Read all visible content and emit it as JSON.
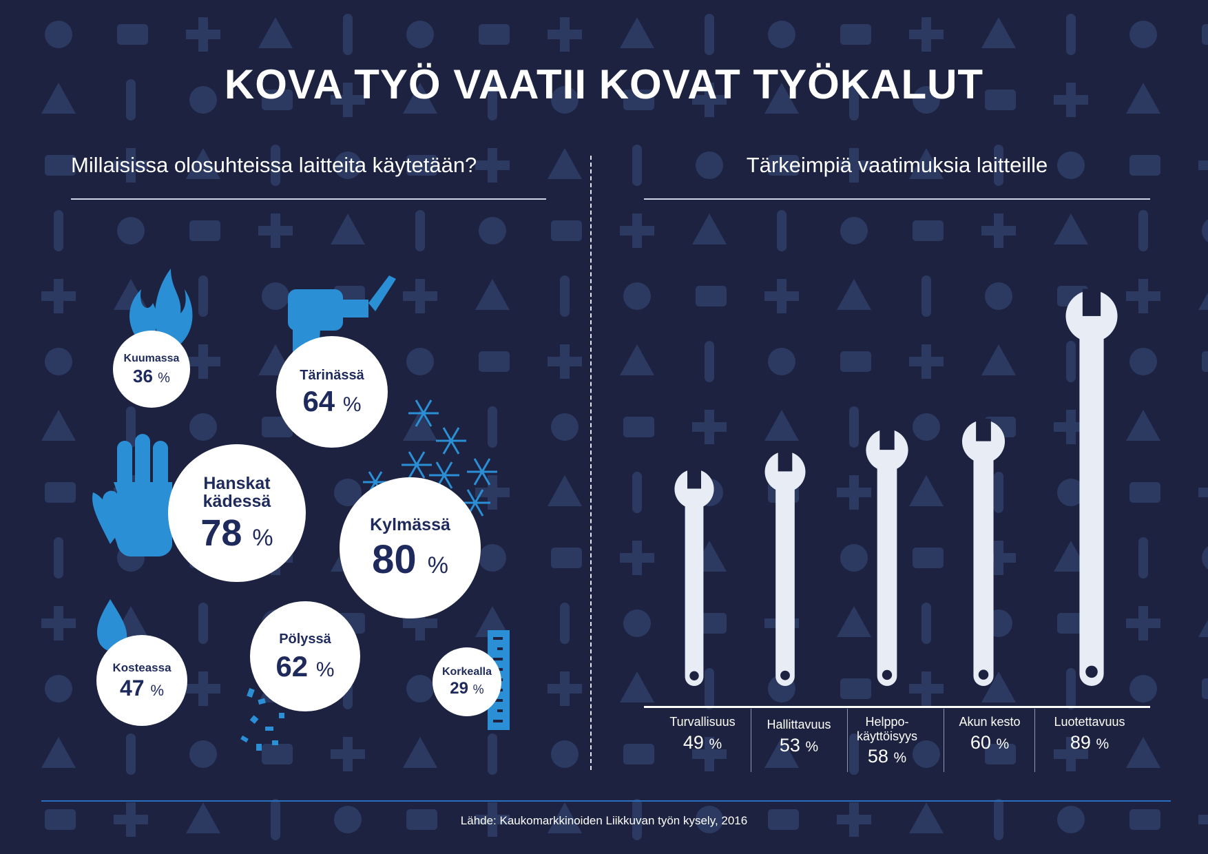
{
  "title": "KOVA TYÖ VAATII KOVAT TYÖKALUT",
  "left_section_title": "Millaisissa olosuhteissa laitteita käytetään?",
  "right_section_title": "Tärkeimpiä vaatimuksia laitteille",
  "percent_sign": "%",
  "colors": {
    "background": "#1c2240",
    "pattern": "#3a4e7c",
    "icon_blue": "#2b8fd6",
    "bubble": "#ffffff",
    "bubble_text": "#1f2a5c",
    "wrench": "#e8edf5",
    "accent_rule": "#2a6fbf"
  },
  "icons": {
    "kuumassa": "flame-icon",
    "tarinassa": "drill-icon",
    "hanskat": "glove-icon",
    "kylmassa": "snowflake-icon",
    "kosteassa": "water-drop-icon",
    "polyssa": "dust-icon",
    "korkealla": "ruler-icon",
    "requirements": "wrench-icon"
  },
  "chart_data": [
    {
      "type": "bubble",
      "title": "Millaisissa olosuhteissa laitteita käytetään?",
      "unit": "%",
      "items": [
        {
          "key": "kuumassa",
          "label": "Kuumassa",
          "value": 36
        },
        {
          "key": "tarinassa",
          "label": "Tärinässä",
          "value": 64
        },
        {
          "key": "hanskat",
          "label_line1": "Hanskat",
          "label_line2": "kädessä",
          "value": 78
        },
        {
          "key": "kylmassa",
          "label": "Kylmässä",
          "value": 80
        },
        {
          "key": "kosteassa",
          "label": "Kosteassa",
          "value": 47
        },
        {
          "key": "polyssa",
          "label": "Pölyssä",
          "value": 62
        },
        {
          "key": "korkealla",
          "label": "Korkealla",
          "value": 29
        }
      ]
    },
    {
      "type": "bar",
      "title": "Tärkeimpiä vaatimuksia laitteille",
      "unit": "%",
      "categories": [
        "Turvallisuus",
        "Hallittavuus",
        "Helppo-käyttöisyys",
        "Akun kesto",
        "Luotettavuus"
      ],
      "label_lines": [
        [
          "Turvallisuus"
        ],
        [
          "Hallittavuus"
        ],
        [
          "Helppo-",
          "käyttöisyys"
        ],
        [
          "Akun kesto"
        ],
        [
          "Luotettavuus"
        ]
      ],
      "values": [
        49,
        53,
        58,
        60,
        89
      ]
    }
  ],
  "source": "Lähde: Kaukomarkkinoiden Liikkuvan työn kysely, 2016"
}
